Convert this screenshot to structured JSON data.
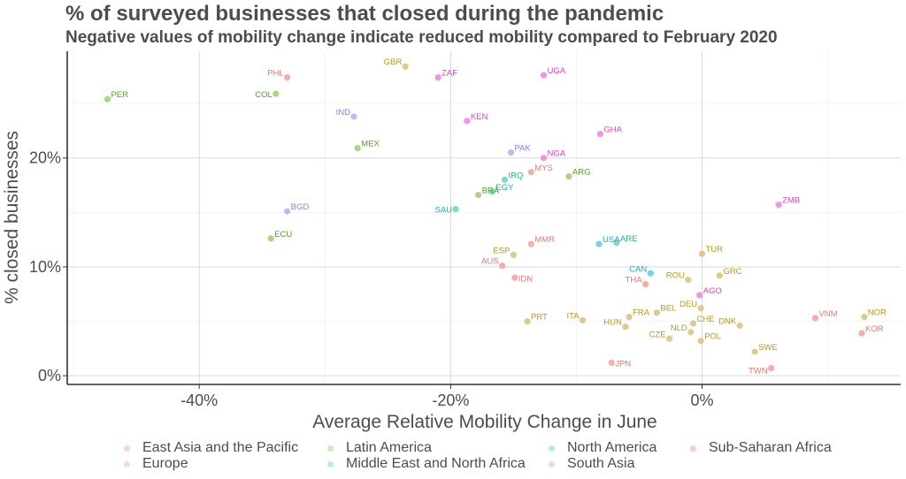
{
  "chart_data": {
    "type": "scatter",
    "title": "% of surveyed businesses that closed during the pandemic",
    "subtitle": "Negative values of mobility change indicate reduced mobility compared to February 2020",
    "xlabel": "Average Relative Mobility Change in June",
    "ylabel": "% closed businesses",
    "xlim": [
      -50.5,
      15.8
    ],
    "ylim": [
      -0.8,
      29.8
    ],
    "x_ticks": [
      -40,
      -20,
      0
    ],
    "x_tick_labels": [
      "-40%",
      "-20%",
      "0%"
    ],
    "y_ticks": [
      0,
      10,
      20
    ],
    "y_tick_labels": [
      "0%",
      "10%",
      "20%"
    ],
    "grid": true,
    "legend_position": "bottom",
    "colors": {
      "East Asia and the Pacific": "#f4a09a",
      "Europe": "#d9c07a",
      "Latin America": "#9ccf6a",
      "Middle East and North Africa": "#5fd8be",
      "North America": "#5fc8ee",
      "South Asia": "#b7aef0",
      "Sub-Saharan Africa": "#f37fe0"
    },
    "label_colors": {
      "East Asia and the Pacific": "#e8776f",
      "Europe": "#b8961f",
      "Latin America": "#4da31f",
      "Middle East and North Africa": "#14b494",
      "North America": "#16a8dc",
      "South Asia": "#8a7ee0",
      "Sub-Saharan Africa": "#e43cc8"
    },
    "legend": [
      "East Asia and the Pacific",
      "Europe",
      "Latin America",
      "Middle East and North Africa",
      "North America",
      "South Asia",
      "Sub-Saharan Africa"
    ],
    "points": [
      {
        "label": "PER",
        "region": "Latin America",
        "x": -47.3,
        "y": 25.4
      },
      {
        "label": "PHL",
        "region": "East Asia and the Pacific",
        "x": -33.0,
        "y": 27.4
      },
      {
        "label": "COL",
        "region": "Latin America",
        "x": -33.9,
        "y": 25.9
      },
      {
        "label": "GBR",
        "region": "Europe",
        "x": -23.6,
        "y": 28.4
      },
      {
        "label": "ZAF",
        "region": "Sub-Saharan Africa",
        "x": -21.0,
        "y": 27.4
      },
      {
        "label": "UGA",
        "region": "Sub-Saharan Africa",
        "x": -12.6,
        "y": 27.6
      },
      {
        "label": "IND",
        "region": "South Asia",
        "x": -27.7,
        "y": 23.8
      },
      {
        "label": "KEN",
        "region": "Sub-Saharan Africa",
        "x": -18.7,
        "y": 23.4
      },
      {
        "label": "GHA",
        "region": "Sub-Saharan Africa",
        "x": -8.1,
        "y": 22.2
      },
      {
        "label": "MEX",
        "region": "Latin America",
        "x": -27.4,
        "y": 20.9
      },
      {
        "label": "PAK",
        "region": "South Asia",
        "x": -15.2,
        "y": 20.5
      },
      {
        "label": "NGA",
        "region": "Sub-Saharan Africa",
        "x": -12.6,
        "y": 20.0
      },
      {
        "label": "MYS",
        "region": "East Asia and the Pacific",
        "x": -13.6,
        "y": 18.7
      },
      {
        "label": "ARG",
        "region": "Latin America",
        "x": -10.6,
        "y": 18.3
      },
      {
        "label": "IRQ",
        "region": "Middle East and North Africa",
        "x": -15.7,
        "y": 18.0
      },
      {
        "label": "EGY",
        "region": "Middle East and North Africa",
        "x": -16.7,
        "y": 16.9
      },
      {
        "label": "BRA",
        "region": "Latin America",
        "x": -17.8,
        "y": 16.6
      },
      {
        "label": "SAU",
        "region": "Middle East and North Africa",
        "x": -19.6,
        "y": 15.3
      },
      {
        "label": "BGD",
        "region": "South Asia",
        "x": -33.0,
        "y": 15.1
      },
      {
        "label": "ZMB",
        "region": "Sub-Saharan Africa",
        "x": 6.1,
        "y": 15.7
      },
      {
        "label": "ECU",
        "region": "Latin America",
        "x": -34.3,
        "y": 12.6
      },
      {
        "label": "MMR",
        "region": "East Asia and the Pacific",
        "x": -13.6,
        "y": 12.1
      },
      {
        "label": "ESP",
        "region": "Europe",
        "x": -15.0,
        "y": 11.1
      },
      {
        "label": "USA",
        "region": "North America",
        "x": -8.2,
        "y": 12.1
      },
      {
        "label": "ARE",
        "region": "Middle East and North Africa",
        "x": -6.8,
        "y": 12.2
      },
      {
        "label": "TUR",
        "region": "Europe",
        "x": 0.0,
        "y": 11.2
      },
      {
        "label": "AUS",
        "region": "East Asia and the Pacific",
        "x": -15.9,
        "y": 10.1
      },
      {
        "label": "CAN",
        "region": "North America",
        "x": -4.1,
        "y": 9.4
      },
      {
        "label": "GRC",
        "region": "Europe",
        "x": 1.4,
        "y": 9.2
      },
      {
        "label": "IDN",
        "region": "East Asia and the Pacific",
        "x": -14.9,
        "y": 9.0
      },
      {
        "label": "ROU",
        "region": "Europe",
        "x": -1.1,
        "y": 8.8
      },
      {
        "label": "THA",
        "region": "East Asia and the Pacific",
        "x": -4.5,
        "y": 8.4
      },
      {
        "label": "AGO",
        "region": "Sub-Saharan Africa",
        "x": -0.2,
        "y": 7.4
      },
      {
        "label": "DEU",
        "region": "Europe",
        "x": -0.1,
        "y": 6.2
      },
      {
        "label": "BEL",
        "region": "Europe",
        "x": -3.6,
        "y": 5.8
      },
      {
        "label": "FRA",
        "region": "Europe",
        "x": -5.8,
        "y": 5.4
      },
      {
        "label": "CHE",
        "region": "Europe",
        "x": -0.7,
        "y": 4.8
      },
      {
        "label": "PRT",
        "region": "Europe",
        "x": -13.9,
        "y": 5.0
      },
      {
        "label": "ITA",
        "region": "Europe",
        "x": -9.5,
        "y": 5.1
      },
      {
        "label": "HUN",
        "region": "Europe",
        "x": -6.1,
        "y": 4.5
      },
      {
        "label": "NLD",
        "region": "Europe",
        "x": -0.9,
        "y": 4.0
      },
      {
        "label": "DNK",
        "region": "Europe",
        "x": 3.0,
        "y": 4.6
      },
      {
        "label": "CZE",
        "region": "Europe",
        "x": -2.6,
        "y": 3.4
      },
      {
        "label": "POL",
        "region": "Europe",
        "x": -0.1,
        "y": 3.2
      },
      {
        "label": "SWE",
        "region": "Europe",
        "x": 4.2,
        "y": 2.2
      },
      {
        "label": "JPN",
        "region": "East Asia and the Pacific",
        "x": -7.2,
        "y": 1.2
      },
      {
        "label": "TWN",
        "region": "East Asia and the Pacific",
        "x": 5.5,
        "y": 0.7
      },
      {
        "label": "VNM",
        "region": "East Asia and the Pacific",
        "x": 9.0,
        "y": 5.3
      },
      {
        "label": "NOR",
        "region": "Europe",
        "x": 12.9,
        "y": 5.4
      },
      {
        "label": "KOR",
        "region": "East Asia and the Pacific",
        "x": 12.7,
        "y": 3.9
      }
    ]
  }
}
